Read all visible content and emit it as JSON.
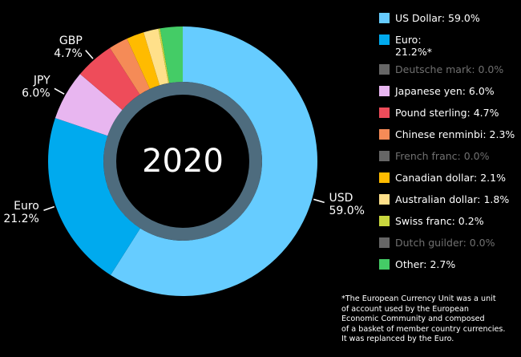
{
  "chart_data": {
    "type": "pie",
    "variant": "donut",
    "title": "2020",
    "start_angle_deg": 0,
    "direction": "clockwise",
    "legend_position": "right",
    "slices": [
      {
        "name": "US Dollar",
        "legend_label": "US Dollar: 59.0%",
        "value": 59.0,
        "color": "#66CCFF",
        "outer_label": [
          "USD",
          "59.0%"
        ],
        "active": true
      },
      {
        "name": "Euro",
        "legend_label": "Euro:\n21.2%*",
        "value": 21.2,
        "color": "#00AAEE",
        "outer_label": [
          "Euro",
          "21.2%"
        ],
        "active": true
      },
      {
        "name": "Deutsche mark",
        "legend_label": "Deutsche mark: 0.0%",
        "value": 0.0,
        "color": "#666666",
        "active": false
      },
      {
        "name": "Japanese yen",
        "legend_label": "Japanese yen: 6.0%",
        "value": 6.0,
        "color": "#E8B6F0",
        "outer_label": [
          "JPY",
          "6.0%"
        ],
        "active": true
      },
      {
        "name": "Pound sterling",
        "legend_label": "Pound sterling: 4.7%",
        "value": 4.7,
        "color": "#EE4C5A",
        "outer_label": [
          "GBP",
          "4.7%"
        ],
        "active": true
      },
      {
        "name": "Chinese renminbi",
        "legend_label": "Chinese renminbi: 2.3%",
        "value": 2.3,
        "color": "#F58B57",
        "active": true
      },
      {
        "name": "French franc",
        "legend_label": "French franc: 0.0%",
        "value": 0.0,
        "color": "#666666",
        "active": false
      },
      {
        "name": "Canadian dollar",
        "legend_label": "Canadian dollar: 2.1%",
        "value": 2.1,
        "color": "#FFBB00",
        "active": true
      },
      {
        "name": "Australian dollar",
        "legend_label": "Australian dollar: 1.8%",
        "value": 1.8,
        "color": "#FFE08A",
        "active": true
      },
      {
        "name": "Swiss franc",
        "legend_label": "Swiss franc: 0.2%",
        "value": 0.2,
        "color": "#C9D73E",
        "active": true
      },
      {
        "name": "Dutch guilder",
        "legend_label": "Dutch guilder: 0.0%",
        "value": 0.0,
        "color": "#666666",
        "active": false
      },
      {
        "name": "Other",
        "legend_label": "Other: 2.7%",
        "value": 2.7,
        "color": "#44CC66",
        "active": true
      }
    ],
    "footnote": "*The European Currency Unit was a unit\nof account used by the European\nEconomic Community and composed\nof a basket of member country currencies.\nIt was replanced by the Euro."
  }
}
